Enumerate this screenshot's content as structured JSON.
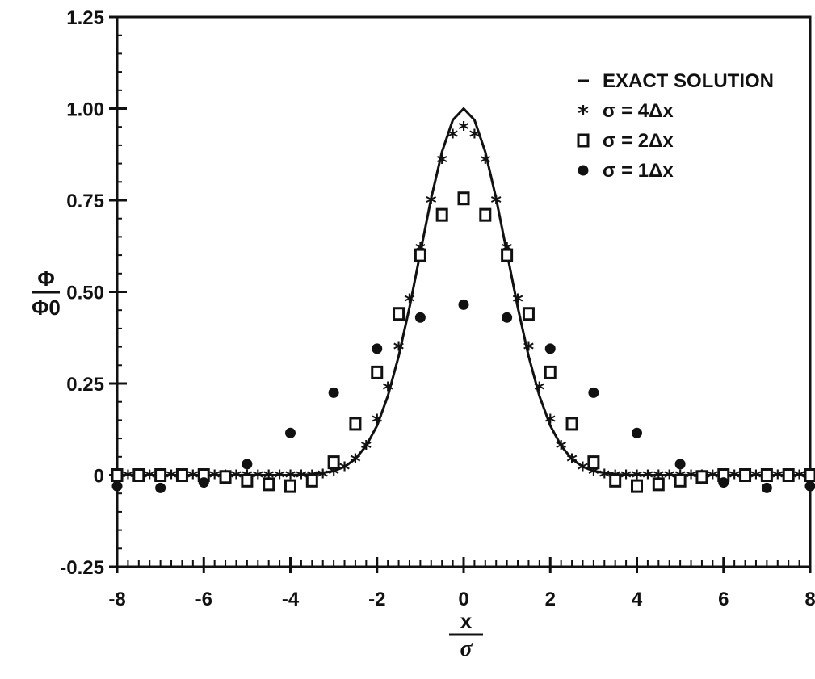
{
  "chart_data": {
    "type": "scatter",
    "xlabel": {
      "numerator": "x",
      "denominator": "σ"
    },
    "ylabel": {
      "numerator": "Φ",
      "denominator": "Φ0"
    },
    "xlim": [
      -8,
      8
    ],
    "ylim": [
      -0.25,
      1.25
    ],
    "x_ticks": [
      "-8",
      "-6",
      "-4",
      "-2",
      "0",
      "2",
      "4",
      "6",
      "8"
    ],
    "y_ticks": [
      "-0.25",
      "0",
      "0.25",
      "0.50",
      "0.75",
      "1.00",
      "1.25"
    ],
    "grid": false,
    "legend_position": "top-right",
    "series": [
      {
        "name": "EXACT SOLUTION",
        "marker": "line",
        "x": [
          -8,
          -7.5,
          -7,
          -6.5,
          -6,
          -5.5,
          -5,
          -4.5,
          -4,
          -3.5,
          -3,
          -2.75,
          -2.5,
          -2.25,
          -2,
          -1.75,
          -1.5,
          -1.25,
          -1,
          -0.75,
          -0.5,
          -0.25,
          0,
          0.25,
          0.5,
          0.75,
          1,
          1.25,
          1.5,
          1.75,
          2,
          2.25,
          2.5,
          2.75,
          3,
          3.5,
          4,
          4.5,
          5,
          5.5,
          6,
          6.5,
          7,
          7.5,
          8
        ],
        "y": [
          0,
          0,
          0,
          0,
          0,
          0,
          0,
          0,
          0,
          0.002,
          0.011,
          0.023,
          0.044,
          0.08,
          0.135,
          0.216,
          0.325,
          0.458,
          0.607,
          0.755,
          0.882,
          0.969,
          1.0,
          0.969,
          0.882,
          0.755,
          0.607,
          0.458,
          0.325,
          0.216,
          0.135,
          0.08,
          0.044,
          0.023,
          0.011,
          0.002,
          0,
          0,
          0,
          0,
          0,
          0,
          0,
          0,
          0
        ]
      },
      {
        "name": "σ = 4Δx",
        "marker": "star",
        "x": [
          -8,
          -7.75,
          -7.5,
          -7.25,
          -7,
          -6.75,
          -6.5,
          -6.25,
          -6,
          -5.75,
          -5.5,
          -5.25,
          -5,
          -4.75,
          -4.5,
          -4.25,
          -4,
          -3.75,
          -3.5,
          -3.25,
          -3,
          -2.75,
          -2.5,
          -2.25,
          -2,
          -1.75,
          -1.5,
          -1.25,
          -1,
          -0.75,
          -0.5,
          -0.25,
          0,
          0.25,
          0.5,
          0.75,
          1,
          1.25,
          1.5,
          1.75,
          2,
          2.25,
          2.5,
          2.75,
          3,
          3.25,
          3.5,
          3.75,
          4,
          4.25,
          4.5,
          4.75,
          5,
          5.25,
          5.5,
          5.75,
          6,
          6.25,
          6.5,
          6.75,
          7,
          7.25,
          7.5,
          7.75,
          8
        ],
        "y": [
          0,
          0,
          0,
          0,
          0,
          0,
          0,
          0,
          0,
          0,
          0,
          0,
          0,
          0,
          0,
          0,
          0,
          0,
          0,
          0.002,
          0.01,
          0.022,
          0.044,
          0.08,
          0.152,
          0.24,
          0.35,
          0.48,
          0.62,
          0.75,
          0.86,
          0.93,
          0.95,
          0.93,
          0.86,
          0.75,
          0.62,
          0.48,
          0.35,
          0.24,
          0.152,
          0.08,
          0.044,
          0.022,
          0.01,
          0.002,
          0,
          0,
          0,
          0,
          0,
          0,
          0,
          0,
          0,
          0,
          0,
          0,
          0,
          0,
          0,
          0,
          0,
          0,
          0
        ]
      },
      {
        "name": "σ = 2Δx",
        "marker": "square",
        "x": [
          -8,
          -7.5,
          -7,
          -6.5,
          -6,
          -5.5,
          -5,
          -4.5,
          -4,
          -3.5,
          -3,
          -2.5,
          -2,
          -1.5,
          -1,
          -0.5,
          0,
          0.5,
          1,
          1.5,
          2,
          2.5,
          3,
          3.5,
          4,
          4.5,
          5,
          5.5,
          6,
          6.5,
          7,
          7.5,
          8
        ],
        "y": [
          0,
          0,
          0,
          0,
          0,
          -0.005,
          -0.015,
          -0.025,
          -0.03,
          -0.015,
          0.035,
          0.14,
          0.28,
          0.44,
          0.6,
          0.71,
          0.755,
          0.71,
          0.6,
          0.44,
          0.28,
          0.14,
          0.035,
          -0.015,
          -0.03,
          -0.025,
          -0.015,
          -0.005,
          0,
          0,
          0,
          0,
          0
        ]
      },
      {
        "name": "σ = 1Δx",
        "marker": "circle",
        "x": [
          -8,
          -7,
          -6,
          -5,
          -4,
          -3,
          -2,
          -1,
          0,
          1,
          2,
          3,
          4,
          5,
          6,
          7,
          8
        ],
        "y": [
          -0.03,
          -0.035,
          -0.02,
          0.03,
          0.115,
          0.225,
          0.345,
          0.43,
          0.465,
          0.43,
          0.345,
          0.225,
          0.115,
          0.03,
          -0.02,
          -0.035,
          -0.03
        ]
      }
    ]
  }
}
